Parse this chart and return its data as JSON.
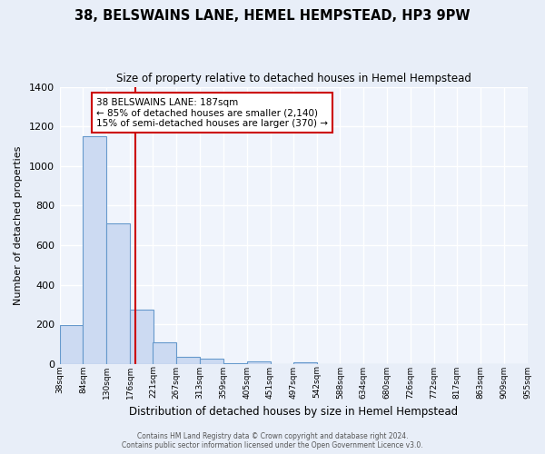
{
  "title": "38, BELSWAINS LANE, HEMEL HEMPSTEAD, HP3 9PW",
  "subtitle": "Size of property relative to detached houses in Hemel Hempstead",
  "xlabel": "Distribution of detached houses by size in Hemel Hempstead",
  "ylabel": "Number of detached properties",
  "footer_line1": "Contains HM Land Registry data © Crown copyright and database right 2024.",
  "footer_line2": "Contains public sector information licensed under the Open Government Licence v3.0.",
  "bar_edges": [
    38,
    84,
    130,
    176,
    221,
    267,
    313,
    359,
    405,
    451,
    497,
    542,
    588,
    634,
    680,
    726,
    772,
    817,
    863,
    909,
    955
  ],
  "bar_heights": [
    195,
    1150,
    710,
    275,
    110,
    35,
    25,
    5,
    12,
    0,
    10,
    0,
    0,
    0,
    0,
    0,
    0,
    0,
    0,
    0
  ],
  "bar_color": "#ccdaf2",
  "bar_edge_color": "#6699cc",
  "vline_color": "#cc0000",
  "vline_x": 187,
  "annotation_title": "38 BELSWAINS LANE: 187sqm",
  "annotation_line1": "← 85% of detached houses are smaller (2,140)",
  "annotation_line2": "15% of semi-detached houses are larger (370) →",
  "annotation_box_facecolor": "#ffffff",
  "annotation_box_edgecolor": "#cc0000",
  "ylim": [
    0,
    1400
  ],
  "yticks": [
    0,
    200,
    400,
    600,
    800,
    1000,
    1200,
    1400
  ],
  "fig_background_color": "#e8eef8",
  "plot_background_color": "#f0f4fc",
  "grid_color": "#ffffff",
  "tick_labels": [
    "38sqm",
    "84sqm",
    "130sqm",
    "176sqm",
    "221sqm",
    "267sqm",
    "313sqm",
    "359sqm",
    "405sqm",
    "451sqm",
    "497sqm",
    "542sqm",
    "588sqm",
    "634sqm",
    "680sqm",
    "726sqm",
    "772sqm",
    "817sqm",
    "863sqm",
    "909sqm",
    "955sqm"
  ]
}
